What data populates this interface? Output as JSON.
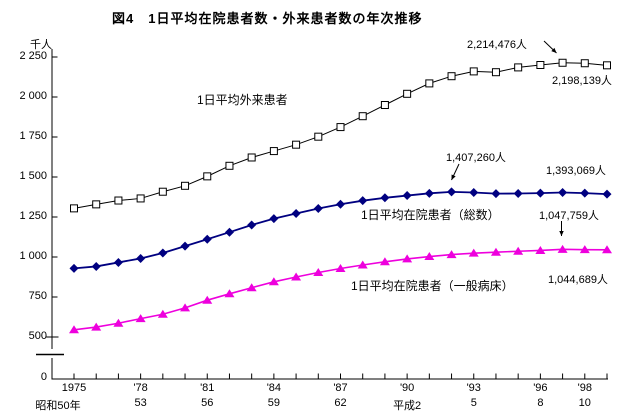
{
  "title": "図4　1日平均在院患者数・外来患者数の年次推移",
  "y_axis": {
    "unit": "千人",
    "zero_label": "0",
    "ticks": [
      {
        "label": "2 250",
        "value": 2250
      },
      {
        "label": "2 000",
        "value": 2000
      },
      {
        "label": "1 750",
        "value": 1750
      },
      {
        "label": "1 500",
        "value": 1500
      },
      {
        "label": "1 250",
        "value": 1250
      },
      {
        "label": "1 000",
        "value": 1000
      },
      {
        "label": "750",
        "value": 750
      },
      {
        "label": "500",
        "value": 500
      }
    ]
  },
  "x_axis": {
    "ticks": [
      {
        "label": "1975",
        "era": "昭和50年",
        "year": 1975
      },
      {
        "label": "'78",
        "era": "53",
        "year": 1978
      },
      {
        "label": "'81",
        "era": "56",
        "year": 1981
      },
      {
        "label": "'84",
        "era": "59",
        "year": 1984
      },
      {
        "label": "'87",
        "era": "62",
        "year": 1987
      },
      {
        "label": "'90",
        "era": "平成2",
        "year": 1990
      },
      {
        "label": "'93",
        "era": "5",
        "year": 1993
      },
      {
        "label": "'96",
        "era": "8",
        "year": 1996
      },
      {
        "label": "'98",
        "era": "10",
        "year": 1998
      }
    ]
  },
  "chart_data": {
    "type": "line",
    "ylabel": "千人",
    "ylim": [
      500,
      2250
    ],
    "y_axis_break": true,
    "years": [
      1975,
      1976,
      1977,
      1978,
      1979,
      1980,
      1981,
      1982,
      1983,
      1984,
      1985,
      1986,
      1987,
      1988,
      1989,
      1990,
      1991,
      1992,
      1993,
      1994,
      1995,
      1996,
      1997,
      1998,
      1999
    ],
    "series": [
      {
        "name": "1日平均外来患者",
        "marker": "square",
        "line_color": "#000000",
        "marker_fill": "#ffffff",
        "marker_stroke": "#000000",
        "values": [
          1304,
          1329,
          1353,
          1366,
          1408,
          1445,
          1504,
          1570,
          1622,
          1662,
          1702,
          1752,
          1812,
          1880,
          1950,
          2020,
          2085,
          2130,
          2160,
          2155,
          2185,
          2200,
          2214,
          2211,
          2198
        ]
      },
      {
        "name": "1日平均在院患者（総数）",
        "marker": "diamond",
        "line_color": "#000080",
        "marker_fill": "#000080",
        "marker_stroke": "#000080",
        "values": [
          929,
          941,
          966,
          991,
          1025,
          1068,
          1111,
          1155,
          1200,
          1240,
          1272,
          1303,
          1330,
          1352,
          1370,
          1384,
          1398,
          1407,
          1403,
          1396,
          1397,
          1399,
          1403,
          1399,
          1393
        ]
      },
      {
        "name": "1日平均在院患者（一般病床）",
        "marker": "triangle",
        "line_color": "#ee00dd",
        "marker_fill": "#ee00dd",
        "marker_stroke": "#ee00dd",
        "values": [
          545,
          562,
          586,
          615,
          642,
          682,
          730,
          770,
          808,
          845,
          875,
          903,
          928,
          950,
          970,
          988,
          1003,
          1015,
          1024,
          1030,
          1036,
          1041,
          1048,
          1046,
          1045
        ]
      }
    ],
    "annotations": [
      {
        "text": "2,214,476人",
        "series": "1日平均外来患者",
        "year": 1997
      },
      {
        "text": "2,198,139人",
        "series": "1日平均外来患者",
        "year": 1999
      },
      {
        "text": "1,407,260人",
        "series": "1日平均在院患者（総数）",
        "year": 1992
      },
      {
        "text": "1,393,069人",
        "series": "1日平均在院患者（総数）",
        "year": 1999
      },
      {
        "text": "1,047,759人",
        "series": "1日平均在院患者（一般病床）",
        "year": 1997
      },
      {
        "text": "1,044,689人",
        "series": "1日平均在院患者（一般病床）",
        "year": 1999
      }
    ]
  }
}
